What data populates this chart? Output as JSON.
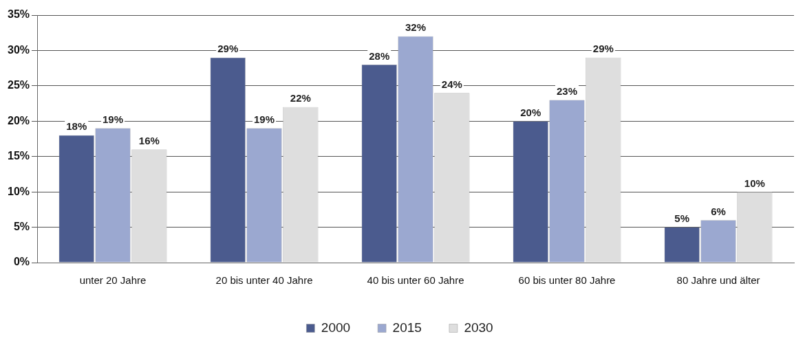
{
  "chart_data": {
    "type": "bar",
    "categories": [
      "unter 20 Jahre",
      "20 bis unter 40 Jahre",
      "40 bis unter 60 Jahre",
      "60 bis unter 80 Jahre",
      "80 Jahre und älter"
    ],
    "series": [
      {
        "name": "2000",
        "color": "#4b5b8e",
        "values": [
          18,
          29,
          28,
          20,
          5
        ],
        "value_labels": [
          "18%",
          "29%",
          "28%",
          "20%",
          "5%"
        ]
      },
      {
        "name": "2015",
        "color": "#9ba8d0",
        "values": [
          19,
          19,
          32,
          23,
          6
        ],
        "value_labels": [
          "19%",
          "19%",
          "32%",
          "23%",
          "6%"
        ]
      },
      {
        "name": "2030",
        "color": "#dedede",
        "values": [
          16,
          22,
          24,
          29,
          10
        ],
        "value_labels": [
          "16%",
          "22%",
          "24%",
          "29%",
          "10%"
        ]
      }
    ],
    "ylim": [
      0,
      35
    ],
    "yticks": [
      {
        "value": 0,
        "label": "0%"
      },
      {
        "value": 5,
        "label": "5%"
      },
      {
        "value": 10,
        "label": "10%"
      },
      {
        "value": 15,
        "label": "15%"
      },
      {
        "value": 20,
        "label": "20%"
      },
      {
        "value": 25,
        "label": "25%"
      },
      {
        "value": 30,
        "label": "30%"
      },
      {
        "value": 35,
        "label": "35%"
      }
    ],
    "grid": "y",
    "legend": "bottom"
  }
}
